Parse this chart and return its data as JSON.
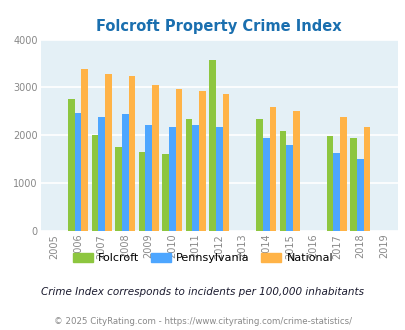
{
  "title": "Folcroft Property Crime Index",
  "years": [
    2005,
    2006,
    2007,
    2008,
    2009,
    2010,
    2011,
    2012,
    2013,
    2014,
    2015,
    2016,
    2017,
    2018,
    2019
  ],
  "folcroft": [
    0,
    2750,
    2000,
    1750,
    1650,
    1600,
    2350,
    3570,
    0,
    2350,
    2100,
    0,
    1980,
    1950,
    0
  ],
  "pennsylvania": [
    0,
    2460,
    2390,
    2450,
    2220,
    2180,
    2220,
    2170,
    0,
    1940,
    1800,
    0,
    1630,
    1500,
    0
  ],
  "national": [
    0,
    3380,
    3290,
    3230,
    3060,
    2960,
    2920,
    2870,
    0,
    2600,
    2510,
    0,
    2390,
    2180,
    0
  ],
  "color_folcroft": "#8dc63f",
  "color_pennsylvania": "#4da6ff",
  "color_national": "#ffb347",
  "bg_color": "#e4f0f6",
  "grid_color": "#ffffff",
  "ylim": [
    0,
    4000
  ],
  "yticks": [
    0,
    1000,
    2000,
    3000,
    4000
  ],
  "subtitle": "Crime Index corresponds to incidents per 100,000 inhabitants",
  "footer": "© 2025 CityRating.com - https://www.cityrating.com/crime-statistics/",
  "title_color": "#1a6faf",
  "subtitle_color": "#1a1a2e",
  "footer_color": "#888888",
  "bar_width": 0.28
}
